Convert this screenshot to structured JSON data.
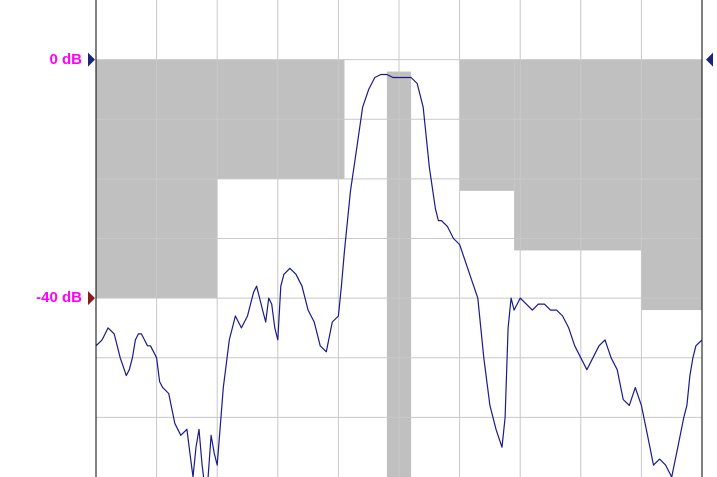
{
  "chart_data": {
    "type": "line",
    "title": "",
    "xlabel": "",
    "ylabel": "",
    "grid": true,
    "x_divisions": 10,
    "y_divisions": 8,
    "xlim": [
      0,
      10
    ],
    "ylim": [
      10,
      -70
    ],
    "y_units": "dB",
    "reference_labels": [
      {
        "text": "0 dB",
        "value": 0,
        "color": "#ff00ff",
        "marker_color": "#1a237e",
        "side": "both"
      },
      {
        "text": "-40 dB",
        "value": -40,
        "color": "#ff00ff",
        "marker_color": "#8b1a1a",
        "side": "left"
      }
    ],
    "limit_mask": {
      "color": "#c0c0c0",
      "regions": [
        {
          "x": [
            0.0,
            2.0
          ],
          "y": [
            0,
            -40
          ]
        },
        {
          "x": [
            2.0,
            4.1
          ],
          "y": [
            0,
            -20
          ]
        },
        {
          "x": [
            4.8,
            5.2
          ],
          "y": [
            -2,
            -70
          ]
        },
        {
          "x": [
            6.0,
            6.9
          ],
          "y": [
            0,
            -22
          ]
        },
        {
          "x": [
            6.9,
            9.0
          ],
          "y": [
            0,
            -32
          ]
        },
        {
          "x": [
            9.0,
            10.0
          ],
          "y": [
            0,
            -42
          ]
        }
      ]
    },
    "series": [
      {
        "color": "#1a1a8c",
        "x": [
          0.0,
          0.1,
          0.2,
          0.3,
          0.4,
          0.5,
          0.55,
          0.6,
          0.65,
          0.7,
          0.75,
          0.8,
          0.85,
          0.9,
          1.0,
          1.05,
          1.1,
          1.2,
          1.3,
          1.4,
          1.5,
          1.55,
          1.6,
          1.65,
          1.7,
          1.75,
          1.8,
          1.85,
          1.9,
          1.95,
          2.0,
          2.1,
          2.2,
          2.3,
          2.4,
          2.5,
          2.55,
          2.6,
          2.65,
          2.7,
          2.75,
          2.8,
          2.85,
          2.9,
          2.95,
          3.0,
          3.05,
          3.1,
          3.2,
          3.3,
          3.4,
          3.5,
          3.6,
          3.7,
          3.8,
          3.9,
          4.0,
          4.05,
          4.1,
          4.15,
          4.2,
          4.3,
          4.4,
          4.5,
          4.6,
          4.7,
          4.8,
          4.9,
          5.0,
          5.1,
          5.2,
          5.3,
          5.4,
          5.5,
          5.6,
          5.65,
          5.7,
          5.8,
          5.9,
          6.0,
          6.1,
          6.2,
          6.3,
          6.4,
          6.5,
          6.6,
          6.7,
          6.75,
          6.8,
          6.85,
          6.9,
          7.0,
          7.1,
          7.2,
          7.3,
          7.4,
          7.5,
          7.6,
          7.7,
          7.8,
          7.9,
          8.0,
          8.1,
          8.2,
          8.3,
          8.4,
          8.5,
          8.6,
          8.7,
          8.8,
          8.9,
          9.0,
          9.1,
          9.2,
          9.3,
          9.4,
          9.5,
          9.6,
          9.7,
          9.75,
          9.8,
          9.85,
          9.9,
          10.0
        ],
        "y": [
          -48,
          -47,
          -45,
          -46,
          -50,
          -53,
          -52,
          -50,
          -47,
          -46,
          -46,
          -47,
          -48,
          -48,
          -50,
          -54,
          -55,
          -56,
          -61,
          -63,
          -62,
          -66,
          -70,
          -65,
          -62,
          -68,
          -72,
          -70,
          -63,
          -66,
          -68,
          -55,
          -47,
          -43,
          -45,
          -43,
          -41,
          -39,
          -38,
          -40,
          -42,
          -44,
          -40,
          -41,
          -45,
          -47,
          -38,
          -36,
          -35,
          -36,
          -38,
          -42,
          -44,
          -48,
          -49,
          -44,
          -43,
          -38,
          -32,
          -27,
          -22,
          -15,
          -8,
          -5,
          -3,
          -2.5,
          -2.5,
          -3,
          -3,
          -3,
          -3,
          -4,
          -8,
          -18,
          -25,
          -27,
          -27,
          -28,
          -30,
          -31,
          -34,
          -37,
          -40,
          -50,
          -58,
          -62,
          -65,
          -60,
          -45,
          -40,
          -42,
          -40,
          -41,
          -42,
          -41,
          -41,
          -42,
          -42,
          -43,
          -45,
          -48,
          -50,
          -52,
          -50,
          -48,
          -47,
          -50,
          -52,
          -57,
          -58,
          -55,
          -58,
          -63,
          -68,
          -67,
          -68,
          -70,
          -65,
          -60,
          -58,
          -53,
          -50,
          -48,
          -47
        ]
      }
    ]
  }
}
